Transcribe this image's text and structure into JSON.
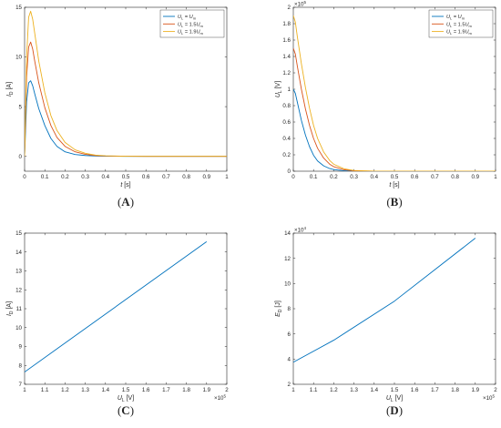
{
  "chart_data": [
    {
      "id": "A",
      "panel_label": "A",
      "type": "line",
      "xlabel": "t [s]",
      "ylabel": "I_D [A]",
      "xlim": [
        0,
        1
      ],
      "ylim": [
        -1.5,
        15
      ],
      "xticks": [
        0,
        0.1,
        0.2,
        0.3,
        0.4,
        0.5,
        0.6,
        0.7,
        0.8,
        0.9,
        1
      ],
      "xtick_labels": [
        "0",
        "0.1",
        "0.2",
        "0.3",
        "0.4",
        "0.5",
        "0.6",
        "0.7",
        "0.8",
        "0.9",
        "1"
      ],
      "yticks": [
        0,
        5,
        10,
        15
      ],
      "ytick_labels": [
        "0",
        "5",
        "10",
        "15"
      ],
      "legend": {
        "placement": "top-right",
        "entries": [
          {
            "name": "U_L = U_m",
            "main": "U",
            "sub1": "L",
            "rest": " = U",
            "sub2": "m"
          },
          {
            "name": "U_L = 1.5U_m",
            "main": "U",
            "sub1": "L",
            "rest": " = 1.5U",
            "sub2": "m"
          },
          {
            "name": "U_L = 1.9U_m",
            "main": "U",
            "sub1": "L",
            "rest": " = 1.9U",
            "sub2": "m"
          }
        ]
      },
      "series": [
        {
          "name": "U_L = U_m",
          "color": "#0072BD",
          "x": [
            0,
            0.01,
            0.02,
            0.03,
            0.04,
            0.05,
            0.07,
            0.1,
            0.13,
            0.16,
            0.2,
            0.25,
            0.3,
            0.35,
            0.4,
            0.5,
            0.6,
            0.8,
            1.0
          ],
          "y": [
            0,
            5.5,
            7.4,
            7.6,
            7.1,
            6.3,
            4.8,
            3.1,
            1.8,
            1.0,
            0.45,
            0.18,
            0.08,
            0.03,
            0.01,
            0,
            0,
            0,
            0
          ]
        },
        {
          "name": "U_L = 1.5U_m",
          "color": "#D95319",
          "x": [
            0,
            0.01,
            0.02,
            0.03,
            0.04,
            0.05,
            0.07,
            0.1,
            0.13,
            0.16,
            0.2,
            0.25,
            0.3,
            0.35,
            0.4,
            0.5,
            0.6,
            0.8,
            1.0
          ],
          "y": [
            0,
            8.0,
            11.0,
            11.5,
            10.8,
            9.6,
            7.4,
            4.9,
            3.1,
            1.9,
            1.0,
            0.45,
            0.2,
            0.08,
            0.03,
            0.01,
            0,
            0,
            0
          ]
        },
        {
          "name": "U_L = 1.9U_m",
          "color": "#EDB120",
          "x": [
            0,
            0.01,
            0.02,
            0.03,
            0.04,
            0.05,
            0.07,
            0.1,
            0.13,
            0.16,
            0.2,
            0.25,
            0.3,
            0.35,
            0.4,
            0.5,
            0.6,
            0.8,
            1.0
          ],
          "y": [
            0,
            10.0,
            14.0,
            14.6,
            13.8,
            12.4,
            9.6,
            6.4,
            4.1,
            2.6,
            1.4,
            0.65,
            0.3,
            0.12,
            0.05,
            0.01,
            0,
            0,
            0
          ]
        }
      ],
      "grid": false
    },
    {
      "id": "B",
      "panel_label": "B",
      "type": "line",
      "xlabel": "t [s]",
      "ylabel": "U_L [V]",
      "xlim": [
        0,
        1
      ],
      "ylim": [
        0,
        200000
      ],
      "y_exponent": "5",
      "xticks": [
        0,
        0.1,
        0.2,
        0.3,
        0.4,
        0.5,
        0.6,
        0.7,
        0.8,
        0.9,
        1
      ],
      "xtick_labels": [
        "0",
        "0.1",
        "0.2",
        "0.3",
        "0.4",
        "0.5",
        "0.6",
        "0.7",
        "0.8",
        "0.9",
        "1"
      ],
      "yticks": [
        0,
        20000,
        40000,
        60000,
        80000,
        100000,
        120000,
        140000,
        160000,
        180000,
        200000
      ],
      "ytick_labels": [
        "0",
        "0.2",
        "0.4",
        "0.6",
        "0.8",
        "1",
        "1.2",
        "1.4",
        "1.6",
        "1.8",
        "2"
      ],
      "legend": {
        "placement": "top-right",
        "entries": [
          {
            "name": "U_L = U_m",
            "main": "U",
            "sub1": "L",
            "rest": " = U",
            "sub2": "m"
          },
          {
            "name": "U_L = 1.5U_m",
            "main": "U",
            "sub1": "L",
            "rest": " = 1.5U",
            "sub2": "m"
          },
          {
            "name": "U_L = 1.9U_m",
            "main": "U",
            "sub1": "L",
            "rest": " = 1.9U",
            "sub2": "m"
          }
        ]
      },
      "series": [
        {
          "name": "U_L = U_m",
          "color": "#0072BD",
          "x": [
            0,
            0.01,
            0.02,
            0.04,
            0.06,
            0.08,
            0.1,
            0.12,
            0.15,
            0.18,
            0.2,
            0.25,
            0.3,
            0.4,
            0.6,
            1.0
          ],
          "y": [
            100000,
            95000,
            84000,
            62000,
            44000,
            30000,
            19500,
            12500,
            6500,
            3200,
            2000,
            600,
            150,
            0,
            0,
            0
          ]
        },
        {
          "name": "U_L = 1.5U_m",
          "color": "#D95319",
          "x": [
            0,
            0.01,
            0.02,
            0.04,
            0.06,
            0.08,
            0.1,
            0.12,
            0.15,
            0.18,
            0.2,
            0.25,
            0.3,
            0.4,
            0.6,
            1.0
          ],
          "y": [
            150000,
            143000,
            128000,
            100000,
            76000,
            56000,
            40000,
            28000,
            16000,
            8500,
            5500,
            1800,
            500,
            50,
            0,
            0
          ]
        },
        {
          "name": "U_L = 1.9U_m",
          "color": "#EDB120",
          "x": [
            0,
            0.01,
            0.02,
            0.04,
            0.06,
            0.08,
            0.1,
            0.12,
            0.15,
            0.18,
            0.2,
            0.25,
            0.3,
            0.4,
            0.6,
            1.0
          ],
          "y": [
            190000,
            182000,
            164000,
            131000,
            102000,
            77000,
            56000,
            40000,
            23500,
            13000,
            8500,
            3000,
            900,
            100,
            0,
            0
          ]
        }
      ],
      "grid": false
    },
    {
      "id": "C",
      "panel_label": "C",
      "type": "line",
      "xlabel": "U_L [V]",
      "ylabel": "I_D [A]",
      "xlim": [
        100000,
        200000
      ],
      "ylim": [
        7,
        15
      ],
      "x_exponent": "5",
      "xticks": [
        100000,
        110000,
        120000,
        130000,
        140000,
        150000,
        160000,
        170000,
        180000,
        190000,
        200000
      ],
      "xtick_labels": [
        "1",
        "1.1",
        "1.2",
        "1.3",
        "1.4",
        "1.5",
        "1.6",
        "1.7",
        "1.8",
        "1.9",
        "2"
      ],
      "yticks": [
        7,
        8,
        9,
        10,
        11,
        12,
        13,
        14,
        15
      ],
      "ytick_labels": [
        "7",
        "8",
        "9",
        "10",
        "11",
        "12",
        "13",
        "14",
        "15"
      ],
      "series": [
        {
          "name": "",
          "color": "#0072BD",
          "x": [
            100000,
            190000
          ],
          "y": [
            7.65,
            14.55
          ]
        }
      ],
      "grid": false
    },
    {
      "id": "D",
      "panel_label": "D",
      "type": "line",
      "xlabel": "U_L [V]",
      "ylabel": "E_D [J]",
      "xlim": [
        100000,
        200000
      ],
      "ylim": [
        20000,
        140000
      ],
      "x_exponent": "5",
      "y_exponent": "4",
      "xticks": [
        100000,
        110000,
        120000,
        130000,
        140000,
        150000,
        160000,
        170000,
        180000,
        190000,
        200000
      ],
      "xtick_labels": [
        "1",
        "1.1",
        "1.2",
        "1.3",
        "1.4",
        "1.5",
        "1.6",
        "1.7",
        "1.8",
        "1.9",
        "2"
      ],
      "yticks": [
        20000,
        40000,
        60000,
        80000,
        100000,
        120000,
        140000
      ],
      "ytick_labels": [
        "2",
        "4",
        "6",
        "8",
        "10",
        "12",
        "14"
      ],
      "series": [
        {
          "name": "",
          "color": "#0072BD",
          "x": [
            100000,
            120000,
            150000,
            190000
          ],
          "y": [
            37500,
            55000,
            86000,
            136000
          ]
        }
      ],
      "grid": false
    }
  ]
}
